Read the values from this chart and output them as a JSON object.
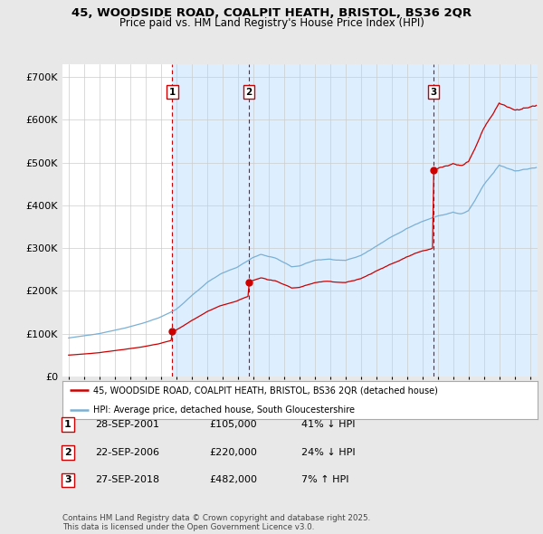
{
  "title1": "45, WOODSIDE ROAD, COALPIT HEATH, BRISTOL, BS36 2QR",
  "title2": "Price paid vs. HM Land Registry's House Price Index (HPI)",
  "background_color": "#e8e8e8",
  "plot_bg": "#ffffff",
  "sale_color": "#cc0000",
  "hpi_color": "#7ab0d4",
  "shade_color": "#ddeeff",
  "vline_color": "#cc0000",
  "sale_dates": [
    2001.74,
    2006.72,
    2018.74
  ],
  "sale_prices": [
    105000,
    220000,
    482000
  ],
  "sale_labels": [
    "1",
    "2",
    "3"
  ],
  "legend_sale": "45, WOODSIDE ROAD, COALPIT HEATH, BRISTOL, BS36 2QR (detached house)",
  "legend_hpi": "HPI: Average price, detached house, South Gloucestershire",
  "table_rows": [
    {
      "num": "1",
      "date": "28-SEP-2001",
      "price": "£105,000",
      "change": "41% ↓ HPI"
    },
    {
      "num": "2",
      "date": "22-SEP-2006",
      "price": "£220,000",
      "change": "24% ↓ HPI"
    },
    {
      "num": "3",
      "date": "27-SEP-2018",
      "price": "£482,000",
      "change": "7% ↑ HPI"
    }
  ],
  "footer": "Contains HM Land Registry data © Crown copyright and database right 2025.\nThis data is licensed under the Open Government Licence v3.0.",
  "ylim": [
    0,
    730000
  ],
  "yticks": [
    0,
    100000,
    200000,
    300000,
    400000,
    500000,
    600000,
    700000
  ],
  "ytick_labels": [
    "£0",
    "£100K",
    "£200K",
    "£300K",
    "£400K",
    "£500K",
    "£600K",
    "£700K"
  ],
  "xlim_start": 1994.6,
  "xlim_end": 2025.5
}
